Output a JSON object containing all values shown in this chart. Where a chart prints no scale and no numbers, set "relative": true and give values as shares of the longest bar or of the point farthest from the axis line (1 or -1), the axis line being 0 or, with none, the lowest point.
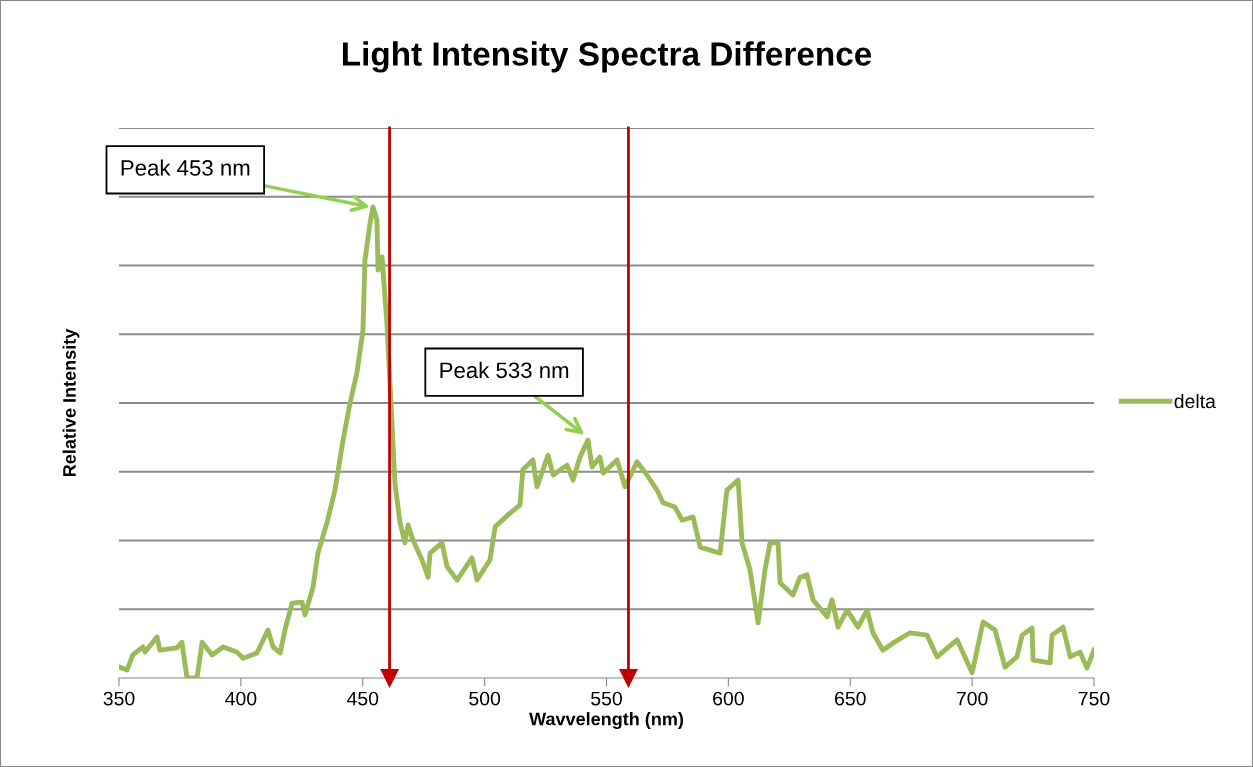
{
  "chart_data": {
    "type": "line",
    "title": "Light Intensity Spectra Difference",
    "xlabel": "Wavvelength (nm)",
    "ylabel": "Relative Intensity",
    "relative": true,
    "xlim": [
      350,
      750
    ],
    "xticks": [
      350,
      400,
      450,
      500,
      550,
      600,
      650,
      700,
      750
    ],
    "grid": "y",
    "legend": "right",
    "marker": "none",
    "line_style": "solid",
    "ref_lines": [
      {
        "axis": "x",
        "value": 461,
        "color": "#c00000"
      },
      {
        "axis": "x",
        "value": 559,
        "color": "#c00000"
      }
    ],
    "annotations": [
      {
        "text": "Peak 453 nm",
        "x": 453,
        "y": 1.0
      },
      {
        "text": "Peak 533 nm",
        "x": 541,
        "y": 0.516
      }
    ],
    "series": [
      {
        "name": "delta",
        "color": "#9bbb59",
        "x": [
          350.4,
          353.3,
          355.7,
          359.8,
          360.7,
          365.6,
          366.8,
          373.8,
          375.8,
          377.9,
          382.0,
          384.1,
          388.2,
          392.7,
          398.4,
          400.9,
          406.6,
          411.1,
          413.2,
          416.1,
          418.1,
          421.0,
          425.1,
          426.3,
          429.6,
          431.6,
          435.3,
          438.6,
          441.9,
          444.8,
          447.6,
          450.1,
          450.9,
          453.0,
          454.2,
          455.8,
          456.3,
          457.9,
          459.9,
          462.0,
          463.2,
          465.3,
          467.3,
          468.6,
          470.6,
          474.3,
          476.8,
          477.6,
          482.5,
          484.6,
          488.7,
          494.8,
          496.9,
          502.2,
          504.3,
          510.4,
          514.5,
          515.7,
          519.8,
          521.5,
          526.0,
          528.1,
          533.8,
          536.3,
          539.1,
          542.4,
          544.1,
          547.3,
          548.6,
          554.3,
          557.6,
          562.5,
          566.6,
          570.7,
          573.2,
          578.1,
          581.0,
          585.5,
          588.4,
          596.6,
          599.4,
          604.0,
          605.6,
          608.9,
          612.2,
          615.0,
          617.1,
          620.4,
          621.2,
          626.5,
          629.4,
          632.3,
          634.7,
          640.5,
          642.5,
          645.0,
          648.7,
          653.2,
          656.9,
          659.3,
          663.4,
          667.5,
          674.5,
          681.5,
          685.6,
          693.8,
          700.0,
          704.5,
          709.4,
          713.5,
          718.4,
          720.5,
          724.6,
          725.0,
          732.0,
          732.8,
          737.3,
          740.2,
          744.3,
          747.1,
          750.0
        ],
        "values": [
          0.023,
          0.017,
          0.049,
          0.066,
          0.055,
          0.087,
          0.059,
          0.064,
          0.076,
          0,
          0,
          0.076,
          0.049,
          0.066,
          0.055,
          0.042,
          0.053,
          0.102,
          0.066,
          0.053,
          0.102,
          0.159,
          0.161,
          0.134,
          0.193,
          0.265,
          0.329,
          0.399,
          0.505,
          0.584,
          0.648,
          0.739,
          0.887,
          0.966,
          1.0,
          0.972,
          0.866,
          0.894,
          0.754,
          0.541,
          0.414,
          0.329,
          0.287,
          0.325,
          0.293,
          0.251,
          0.214,
          0.265,
          0.287,
          0.236,
          0.208,
          0.255,
          0.208,
          0.251,
          0.321,
          0.35,
          0.367,
          0.442,
          0.463,
          0.406,
          0.473,
          0.431,
          0.452,
          0.42,
          0.469,
          0.505,
          0.448,
          0.469,
          0.435,
          0.463,
          0.406,
          0.459,
          0.431,
          0.399,
          0.372,
          0.363,
          0.335,
          0.342,
          0.278,
          0.265,
          0.399,
          0.42,
          0.287,
          0.229,
          0.117,
          0.229,
          0.287,
          0.287,
          0.202,
          0.176,
          0.214,
          0.219,
          0.166,
          0.13,
          0.166,
          0.108,
          0.144,
          0.108,
          0.144,
          0.096,
          0.059,
          0.074,
          0.096,
          0.091,
          0.045,
          0.081,
          0.011,
          0.119,
          0.102,
          0.023,
          0.045,
          0.091,
          0.106,
          0.038,
          0.032,
          0.091,
          0.108,
          0.045,
          0.055,
          0.021,
          0.059
        ]
      }
    ]
  }
}
